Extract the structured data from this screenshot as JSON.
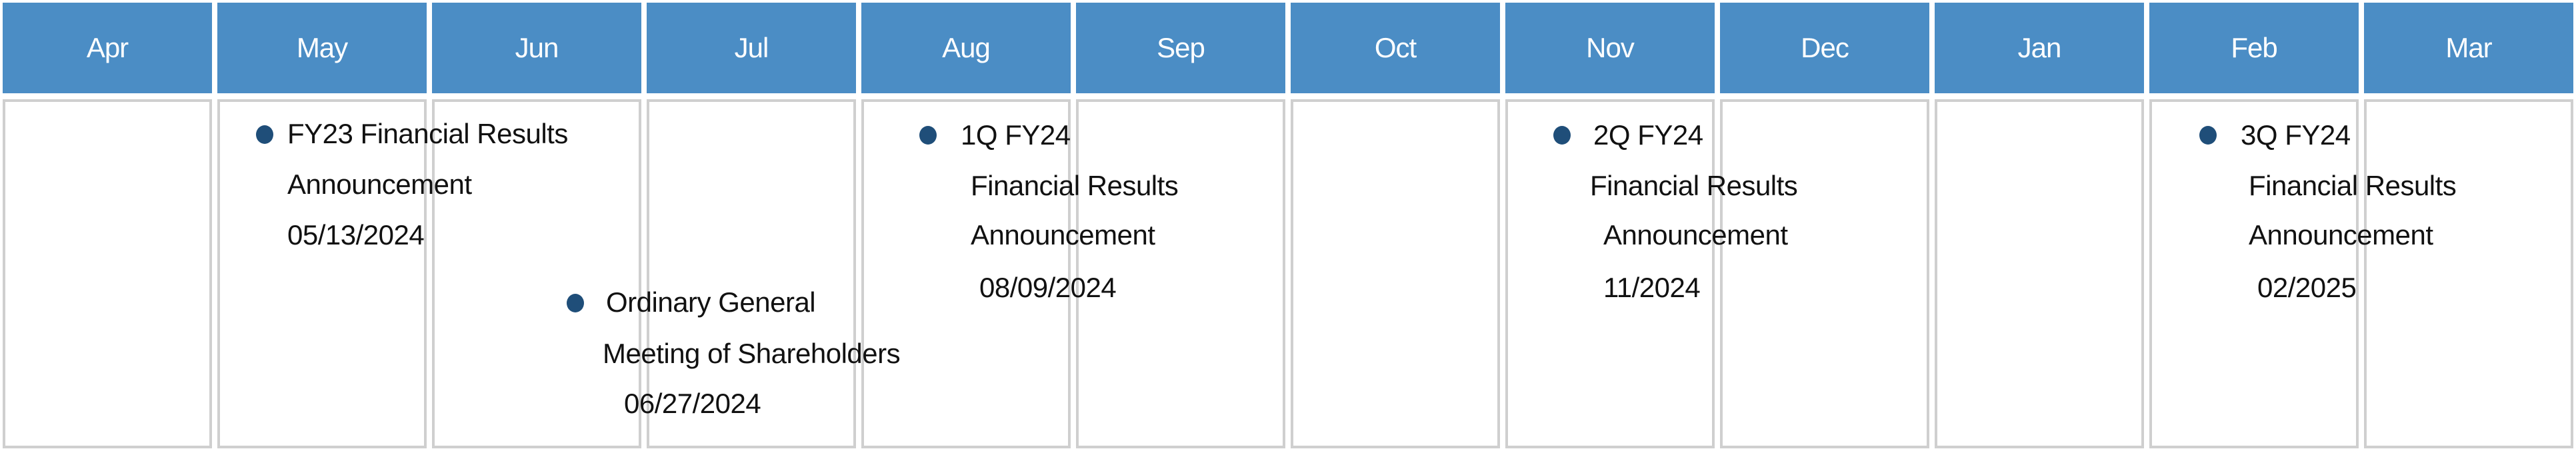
{
  "months": [
    "Apr",
    "May",
    "Jun",
    "Jul",
    "Aug",
    "Sep",
    "Oct",
    "Nov",
    "Dec",
    "Jan",
    "Feb",
    "Mar"
  ],
  "colors": {
    "header": "#4b8dc5",
    "bullet": "#1f4e79",
    "cell_border": "#cfcfcf"
  },
  "events": [
    {
      "month": "May",
      "lines": [
        "FY23 Financial Results",
        "Announcement",
        "05/13/2024"
      ]
    },
    {
      "month": "Jun",
      "lines": [
        "Ordinary General",
        "Meeting of Shareholders",
        "06/27/2024"
      ]
    },
    {
      "month": "Aug",
      "lines": [
        "1Q FY24",
        "Financial Results",
        "Announcement",
        "08/09/2024"
      ]
    },
    {
      "month": "Nov",
      "lines": [
        "2Q FY24",
        "Financial Results",
        "Announcement",
        "11/2024"
      ]
    },
    {
      "month": "Feb",
      "lines": [
        "3Q FY24",
        "Financial Results",
        "Announcement",
        "02/2025"
      ]
    }
  ]
}
